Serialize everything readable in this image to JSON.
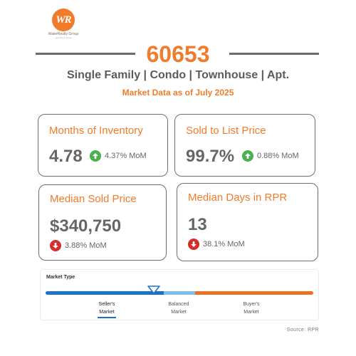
{
  "brand": {
    "logo_text": "WR",
    "name": "WaterRealty Group",
    "tagline": "your key to home"
  },
  "header": {
    "zip": "60653",
    "property_types": "Single Family | Condo | Townhouse | Apt.",
    "as_of": "Market Data as of July 2025"
  },
  "cards": [
    {
      "title": "Months of Inventory",
      "value": "4.78",
      "change": "4.37% MoM",
      "direction": "up"
    },
    {
      "title": "Sold to List Price",
      "value": "99.7%",
      "change": "0.88% MoM",
      "direction": "up"
    },
    {
      "title": "Median Sold Price",
      "value": "$340,750",
      "change": "3.88% MoM",
      "direction": "down"
    },
    {
      "title": "Median Days in RPR",
      "value": "13",
      "change": "38.1% MoM",
      "direction": "down"
    }
  ],
  "market_type": {
    "title": "Market Type",
    "labels": {
      "seller_1": "Seller's",
      "seller_2": "Market",
      "balanced_1": "Balanced",
      "balanced_2": "Market",
      "buyer_1": "Buyer's",
      "buyer_2": "Market"
    },
    "selected": "Seller's Market"
  },
  "source": "Source: RPR",
  "colors": {
    "accent": "#f07c2b",
    "up": "#4caf50",
    "down": "#d62d2d",
    "seller": "#1a73c4",
    "balanced": "#80bde8",
    "buyer": "#ea7223"
  }
}
